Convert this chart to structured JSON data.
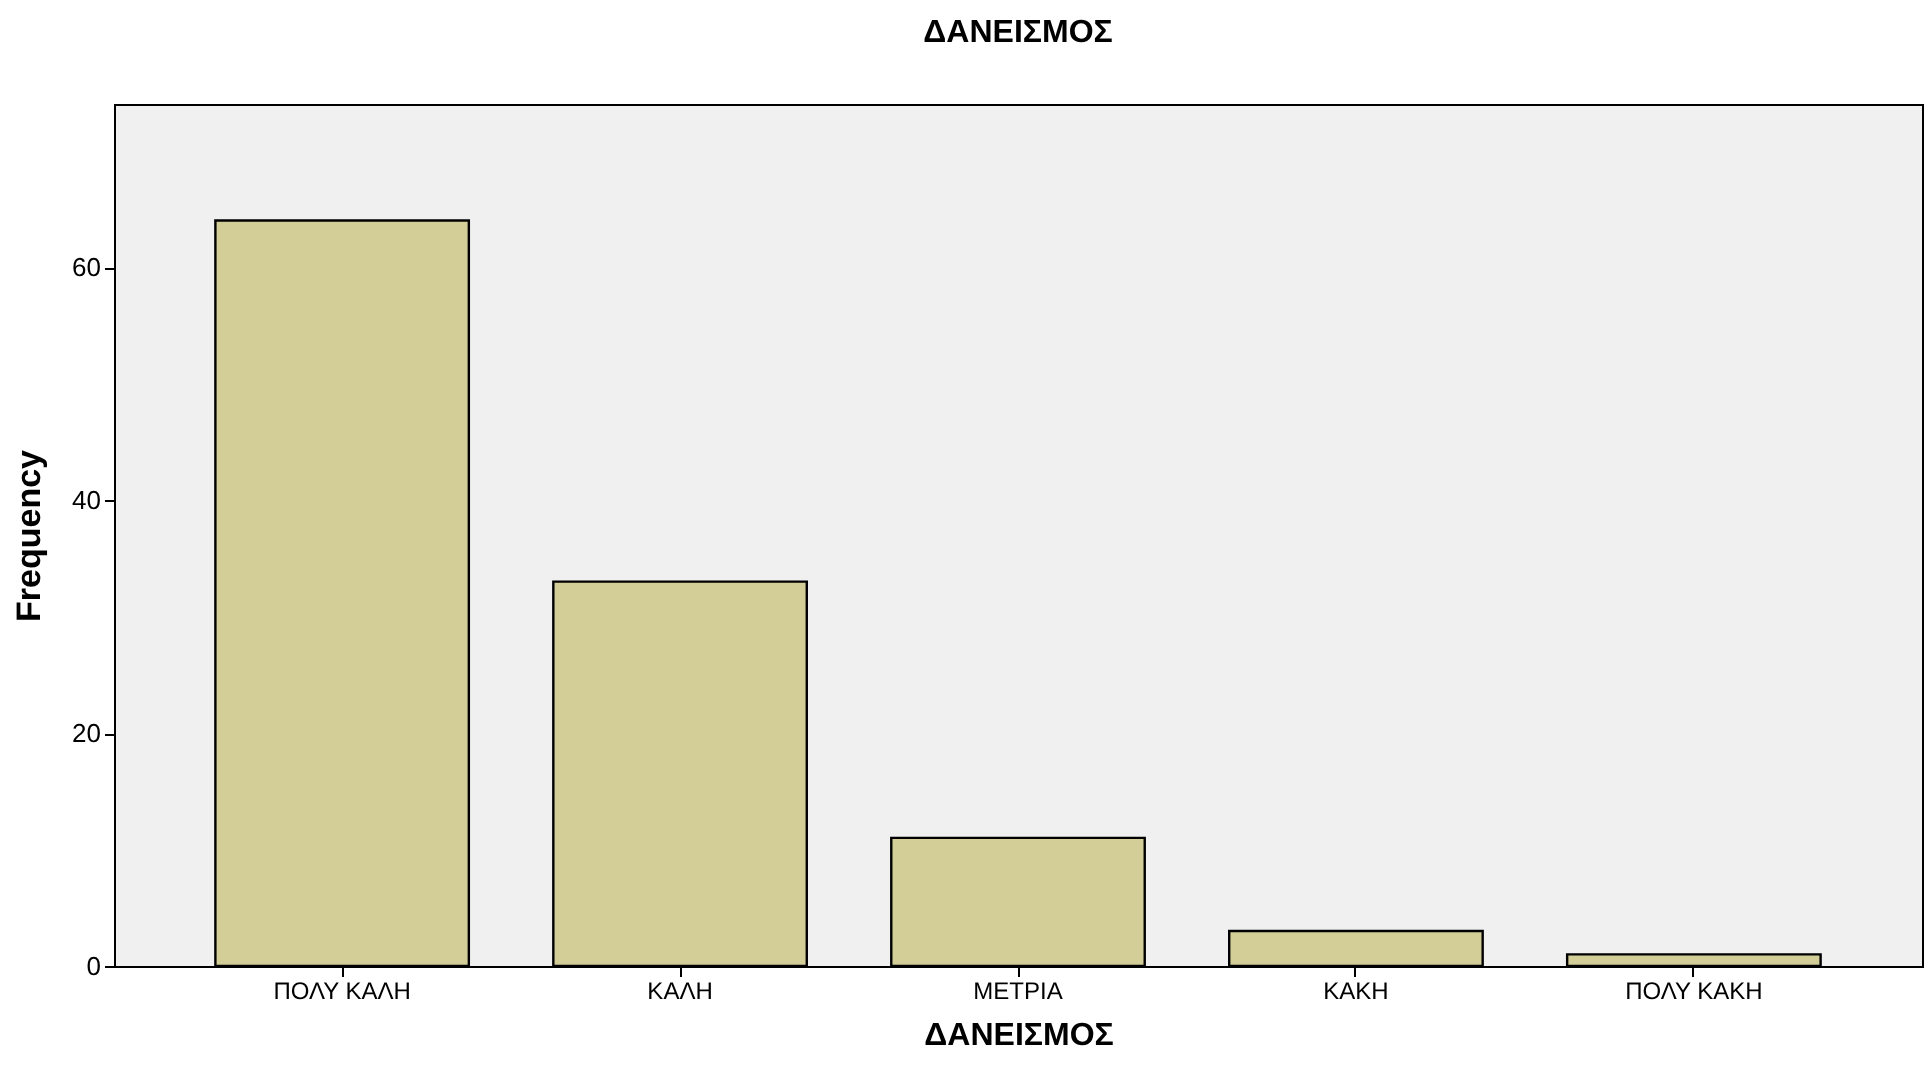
{
  "chart_data": {
    "type": "bar",
    "title": "ΔΑΝΕΙΣΜΟΣ",
    "xlabel": "ΔΑΝΕΙΣΜΟΣ",
    "ylabel": "Frequency",
    "categories": [
      "ΠΟΛΥ ΚΑΛΗ",
      "ΚΑΛΗ",
      "ΜΕΤΡΙΑ",
      "ΚΑΚΗ",
      "ΠΟΛΥ ΚΑΚΗ"
    ],
    "values": [
      64,
      33,
      11,
      3,
      1
    ],
    "color": "#d3ce98",
    "ylim": [
      0,
      74
    ],
    "yticks": [
      0,
      20,
      40,
      60
    ],
    "grid": false
  }
}
